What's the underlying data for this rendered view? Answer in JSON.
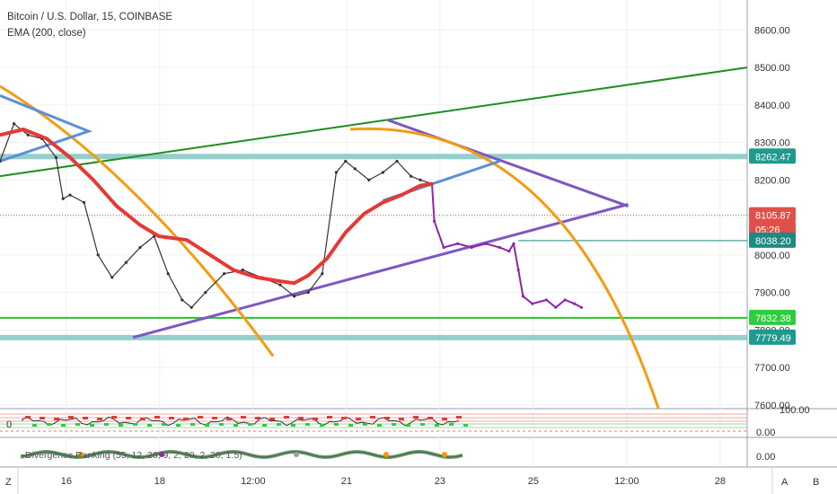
{
  "header": {
    "title": "Bitcoin / U.S. Dollar, 15, COINBASE",
    "indicator": "EMA (200, close)"
  },
  "bottom_bar": {
    "left_button": "Z",
    "right_a": "A",
    "right_b": "B"
  },
  "colors": {
    "price": "#333333",
    "price_after_break": "#8e24aa",
    "ema": "#e53935",
    "green_line": "#1e8e1e",
    "band": "#84c6c4",
    "orange_arc": "#f39c12",
    "purple_line": "#7e57c2",
    "blue_line": "#5b8fd9",
    "bright_green": "#22c52a"
  },
  "subpanes": [
    {
      "ticks": [
        "0",
        "100.00",
        "0.00"
      ]
    },
    {
      "label": "Divergence Ranking (55, 12, 26, 9, 2, 20, 2, 20, 1.5)",
      "ticks": [
        "0.00"
      ]
    }
  ],
  "chart_data": {
    "type": "line",
    "title": "Bitcoin / U.S. Dollar, 15, COINBASE",
    "xlabel": "",
    "ylabel": "",
    "x_ticks": [
      "16",
      "18",
      "12:00",
      "21",
      "23",
      "25",
      "12:00",
      "28"
    ],
    "x_tick_positions": [
      1.42,
      3.42,
      5.42,
      7.42,
      9.42,
      11.42,
      13.42,
      15.42
    ],
    "x_range": [
      0,
      16
    ],
    "y_ticks": [
      7600,
      7700,
      7800,
      7900,
      8000,
      8100,
      8200,
      8300,
      8400,
      8500,
      8600
    ],
    "y_tick_labels": [
      "7600.00",
      "7700.00",
      "7800.00",
      "7900.00",
      "8000.00",
      "8100.00",
      "8200.00",
      "8300.00",
      "8400.00",
      "8500.00",
      "8600.00"
    ],
    "ylim": [
      7590,
      8680
    ],
    "price_tags": [
      {
        "label": "8262.47",
        "value": 8262.47,
        "color": "#1e9a8e"
      },
      {
        "label": "8105.87",
        "value": 8105.87,
        "color": "#e0504a"
      },
      {
        "label": "05:26",
        "value": 8080,
        "color": "#e0504a"
      },
      {
        "label": "8038.20",
        "value": 8038.2,
        "color": "#1e8a82"
      },
      {
        "label": "7832.38",
        "value": 7832.38,
        "color": "#2ecc40"
      },
      {
        "label": "7779.49",
        "value": 7779.49,
        "color": "#1e9a8e"
      }
    ],
    "series": [
      {
        "values_x": [
          0.0,
          0.3,
          0.6,
          0.9,
          1.2,
          1.35,
          1.5,
          1.8,
          2.1,
          2.4,
          2.7,
          3.0,
          3.3,
          3.6,
          3.9,
          4.1,
          4.4,
          4.8,
          5.2,
          5.6,
          6.0,
          6.3,
          6.6,
          6.9,
          7.2,
          7.4,
          7.6,
          7.9,
          8.2,
          8.5,
          8.8,
          9.0,
          9.25
        ],
        "values": [
          8250,
          8350,
          8320,
          8310,
          8260,
          8150,
          8160,
          8140,
          8000,
          7940,
          7980,
          8020,
          8050,
          7950,
          7880,
          7860,
          7900,
          7950,
          7960,
          7940,
          7920,
          7890,
          7900,
          7950,
          8220,
          8250,
          8230,
          8200,
          8220,
          8250,
          8210,
          8200,
          8190
        ]
      },
      {
        "values_x": [
          9.25,
          9.3,
          9.5,
          9.8,
          10.1,
          10.4,
          10.7,
          10.9,
          11.0,
          11.1,
          11.2,
          11.4,
          11.7,
          11.9,
          12.1,
          12.3,
          12.45
        ],
        "values": [
          8190,
          8090,
          8020,
          8030,
          8020,
          8030,
          8020,
          8010,
          8030,
          7960,
          7890,
          7870,
          7880,
          7860,
          7880,
          7870,
          7860
        ]
      },
      {
        "name": "EMA (200, close)",
        "values_x": [
          0.0,
          0.5,
          1.0,
          1.5,
          2.0,
          2.5,
          3.0,
          3.4,
          4.0,
          4.5,
          5.0,
          5.5,
          6.0,
          6.3,
          6.6,
          7.0,
          7.4,
          7.8,
          8.2,
          8.6,
          9.0,
          9.25
        ],
        "values": [
          8320,
          8335,
          8310,
          8260,
          8200,
          8130,
          8080,
          8050,
          8040,
          8000,
          7960,
          7940,
          7930,
          7925,
          7945,
          7990,
          8060,
          8110,
          8140,
          8160,
          8185,
          8190
        ]
      }
    ]
  }
}
